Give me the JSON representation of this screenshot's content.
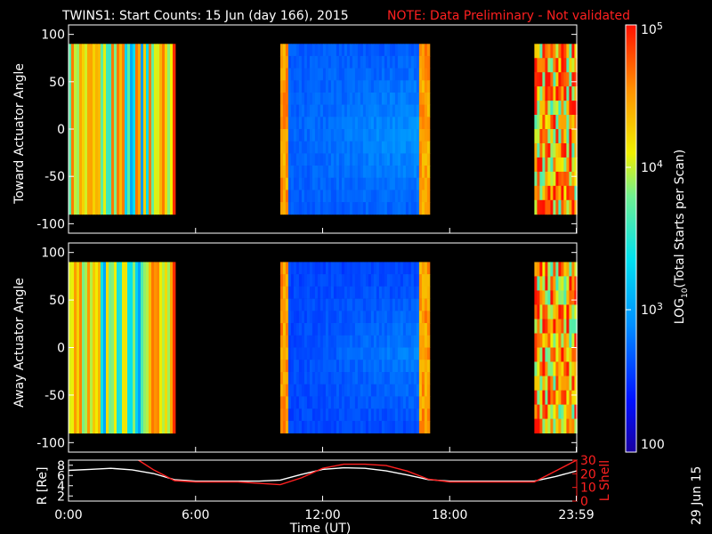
{
  "title": "TWINS1: Start Counts: 15 Jun (day 166), 2015",
  "note": "NOTE: Data Preliminary - Not validated",
  "date_stamp": "29 Jun 15",
  "colors": {
    "white": "#ffffff",
    "red": "#ff2020",
    "black": "#000000"
  },
  "chart_data": [
    {
      "type": "heatmap",
      "name": "toward",
      "ylabel": "Toward Actuator Angle",
      "ylim": [
        -110,
        110
      ],
      "yticks": [
        "100",
        "50",
        "0",
        "-50",
        "-100"
      ],
      "ytick_values": [
        100,
        50,
        0,
        -50,
        -100
      ],
      "xlim": [
        0,
        24
      ],
      "data_y_range": [
        -90,
        90
      ],
      "blocks": [
        {
          "start": 0.0,
          "end": 5.0,
          "level": "high",
          "log10_counts": 4.2
        },
        {
          "start": 10.0,
          "end": 17.0,
          "level": "low",
          "log10_counts": 2.7
        },
        {
          "start": 22.0,
          "end": 24.0,
          "level": "high-noisy",
          "log10_counts": 4.4
        }
      ]
    },
    {
      "type": "heatmap",
      "name": "away",
      "ylabel": "Away Actuator Angle",
      "ylim": [
        -110,
        110
      ],
      "yticks": [
        "100",
        "50",
        "0",
        "-50",
        "-100"
      ],
      "ytick_values": [
        100,
        50,
        0,
        -50,
        -100
      ],
      "xlim": [
        0,
        24
      ],
      "data_y_range": [
        -90,
        90
      ],
      "blocks": [
        {
          "start": 0.0,
          "end": 5.0,
          "level": "high",
          "log10_counts": 4.2
        },
        {
          "start": 10.0,
          "end": 17.0,
          "level": "low",
          "log10_counts": 2.6
        },
        {
          "start": 22.0,
          "end": 24.0,
          "level": "high-noisy",
          "log10_counts": 4.4
        }
      ]
    },
    {
      "type": "line",
      "name": "orbit",
      "ylabel_left": "R [Re]",
      "ylabel_right": "L Shell",
      "yticks_left": [
        "8",
        "6",
        "4",
        "2"
      ],
      "ytick_values_left": [
        8,
        6,
        4,
        2
      ],
      "ylim_left": [
        1,
        9
      ],
      "yticks_right": [
        "30",
        "20",
        "10",
        "0"
      ],
      "ytick_values_right": [
        30,
        20,
        10,
        0
      ],
      "ylim_right": [
        0,
        30
      ],
      "series": [
        {
          "axis": "left",
          "color": "#ffffff",
          "x": [
            0,
            1,
            2,
            3,
            4,
            5,
            6,
            7,
            8,
            9,
            10,
            11,
            12,
            13,
            14,
            15,
            16,
            17,
            18,
            19,
            20,
            21,
            22,
            23,
            24
          ],
          "y": [
            7.0,
            7.2,
            7.4,
            7.1,
            6.4,
            5.2,
            4.9,
            4.9,
            4.9,
            4.9,
            5.1,
            6.2,
            7.2,
            7.5,
            7.4,
            6.9,
            6.1,
            5.2,
            4.9,
            4.9,
            4.9,
            4.9,
            4.9,
            5.8,
            6.9
          ]
        },
        {
          "axis": "right",
          "color": "#ff2020",
          "x": [
            3.3,
            4.0,
            5.0,
            6.0,
            7.0,
            8.0,
            9.0,
            10.0,
            11.0,
            12.0,
            13.0,
            14.0,
            15.0,
            16.0,
            17.0,
            18.0,
            19.0,
            20.0,
            21.0,
            22.0,
            23.0,
            24.0
          ],
          "y": [
            30,
            23,
            15,
            14,
            14,
            14,
            13,
            12,
            17,
            24,
            27,
            27,
            26,
            22,
            16,
            14,
            14,
            14,
            14,
            14,
            22,
            30
          ]
        }
      ]
    }
  ],
  "xaxis": {
    "label": "Time (UT)",
    "ticks": [
      "0:00",
      "6:00",
      "12:00",
      "18:00",
      "23:59"
    ],
    "tick_values": [
      0,
      6,
      12,
      18,
      23.98
    ]
  },
  "colorbar": {
    "label": "LOG10(Total Starts per Scan)",
    "label_main": "LOG",
    "label_sub": "10",
    "label_rest": "(Total Starts per Scan)",
    "ticks": [
      {
        "text": "10",
        "sup": "5",
        "value": 5
      },
      {
        "text": "10",
        "sup": "4",
        "value": 4
      },
      {
        "text": "10",
        "sup": "3",
        "value": 3
      },
      {
        "text": "100",
        "sup": "",
        "value": 2
      }
    ],
    "range": [
      2,
      5
    ]
  }
}
